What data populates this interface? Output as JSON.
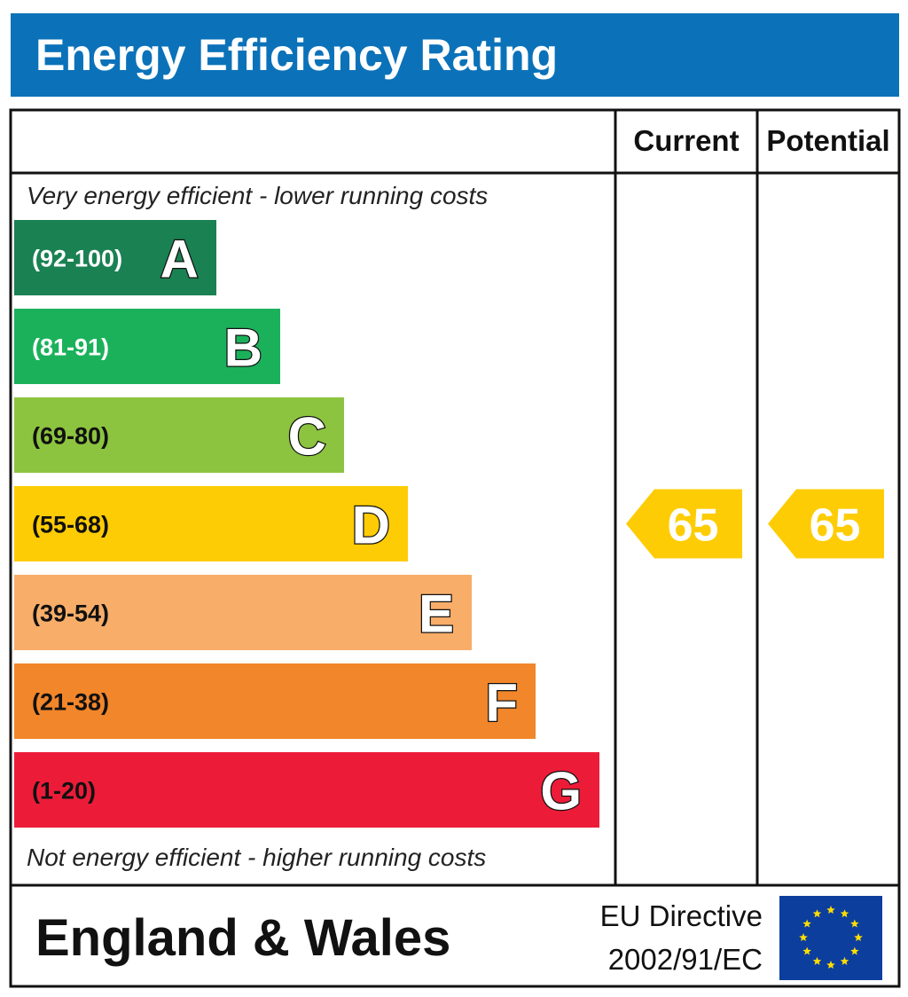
{
  "header": {
    "title": "Energy Efficiency Rating"
  },
  "columns": {
    "current": "Current",
    "potential": "Potential"
  },
  "notes": {
    "top": "Very energy efficient - lower running costs",
    "bottom": "Not energy efficient - higher running costs"
  },
  "footer": {
    "region": "England & Wales",
    "directive_line1": "EU Directive",
    "directive_line2": "2002/91/EC",
    "flag_icon": "eu-flag-icon"
  },
  "chart_data": {
    "type": "bar",
    "bands": [
      {
        "range": "(92-100)",
        "letter": "A",
        "color": "#1a8152",
        "text_color": "#ffffff"
      },
      {
        "range": "(81-91)",
        "letter": "B",
        "color": "#1bb15b",
        "text_color": "#ffffff"
      },
      {
        "range": "(69-80)",
        "letter": "C",
        "color": "#8cc43f",
        "text_color": "#111111"
      },
      {
        "range": "(55-68)",
        "letter": "D",
        "color": "#fecc04",
        "text_color": "#111111"
      },
      {
        "range": "(39-54)",
        "letter": "E",
        "color": "#f8ad69",
        "text_color": "#111111"
      },
      {
        "range": "(21-38)",
        "letter": "F",
        "color": "#f2862a",
        "text_color": "#111111"
      },
      {
        "range": "(1-20)",
        "letter": "G",
        "color": "#ec1c38",
        "text_color": "#111111"
      }
    ],
    "current": {
      "value": 65,
      "band": "D"
    },
    "potential": {
      "value": 65,
      "band": "D"
    },
    "arrow_color": "#fecc04",
    "flag_color": "#0c3e9e",
    "star_color": "#ffde00"
  }
}
